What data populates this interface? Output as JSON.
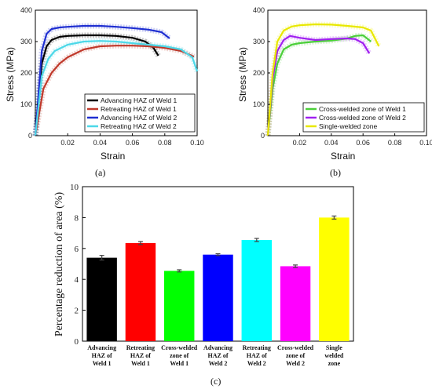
{
  "chart_data": [
    {
      "panel": "(a)",
      "type": "line",
      "xlabel": "Strain",
      "ylabel": "Stress (MPa)",
      "xlim": [
        0,
        0.1
      ],
      "ylim": [
        0,
        400
      ],
      "xticks": [
        "0.02",
        "0.04",
        "0.06",
        "0.08",
        "0.10"
      ],
      "yticks": [
        "0",
        "100",
        "200",
        "300",
        "400"
      ],
      "legend_position": "bottom-right",
      "series": [
        {
          "name": "Advancing HAZ of Weld 1",
          "color": "#000000",
          "x": [
            0,
            0.004,
            0.007,
            0.01,
            0.015,
            0.02,
            0.03,
            0.04,
            0.05,
            0.06,
            0.068,
            0.073,
            0.076
          ],
          "y": [
            0,
            230,
            285,
            305,
            315,
            318,
            320,
            320,
            318,
            312,
            300,
            280,
            255
          ]
        },
        {
          "name": "Retreating HAZ of Weld 1",
          "color": "#c0392b",
          "x": [
            0,
            0.005,
            0.01,
            0.015,
            0.02,
            0.03,
            0.04,
            0.05,
            0.06,
            0.07,
            0.08,
            0.09,
            0.098
          ],
          "y": [
            0,
            150,
            200,
            230,
            250,
            275,
            285,
            287,
            287,
            285,
            280,
            270,
            252
          ]
        },
        {
          "name": "Advancing HAZ of Weld 2",
          "color": "#1f2fd1",
          "x": [
            0,
            0.004,
            0.007,
            0.01,
            0.015,
            0.02,
            0.03,
            0.04,
            0.05,
            0.06,
            0.07,
            0.078,
            0.083
          ],
          "y": [
            0,
            270,
            325,
            340,
            345,
            347,
            350,
            350,
            347,
            343,
            338,
            330,
            310
          ]
        },
        {
          "name": "Retreating HAZ of Weld 2",
          "color": "#4dd8e8",
          "x": [
            0,
            0.004,
            0.008,
            0.012,
            0.02,
            0.03,
            0.04,
            0.05,
            0.06,
            0.07,
            0.08,
            0.09,
            0.097,
            0.1
          ],
          "y": [
            0,
            190,
            245,
            270,
            290,
            300,
            302,
            300,
            295,
            290,
            285,
            275,
            250,
            205
          ]
        }
      ]
    },
    {
      "panel": "(b)",
      "type": "line",
      "xlabel": "Strain",
      "ylabel": "Stress (MPa)",
      "xlim": [
        0,
        0.1
      ],
      "ylim": [
        0,
        400
      ],
      "xticks": [
        "0.02",
        "0.04",
        "0.06",
        "0.08",
        "0.10"
      ],
      "yticks": [
        "0",
        "100",
        "200",
        "300",
        "400"
      ],
      "legend_position": "bottom-right",
      "series": [
        {
          "name": "Cross-welded zone of Weld 1",
          "color": "#4ccf3a",
          "x": [
            0,
            0.003,
            0.006,
            0.01,
            0.015,
            0.02,
            0.03,
            0.04,
            0.05,
            0.055,
            0.06,
            0.065
          ],
          "y": [
            0,
            150,
            230,
            275,
            290,
            295,
            300,
            303,
            310,
            318,
            320,
            300
          ]
        },
        {
          "name": "Cross-welded zone of Weld 2",
          "color": "#a020f0",
          "x": [
            0,
            0.003,
            0.006,
            0.01,
            0.014,
            0.02,
            0.03,
            0.04,
            0.05,
            0.055,
            0.06,
            0.064
          ],
          "y": [
            0,
            180,
            270,
            305,
            318,
            312,
            305,
            308,
            310,
            308,
            295,
            262
          ]
        },
        {
          "name": "Single-welded zone",
          "color": "#f2f20a",
          "x": [
            0,
            0.003,
            0.006,
            0.01,
            0.015,
            0.02,
            0.03,
            0.04,
            0.05,
            0.06,
            0.065,
            0.07
          ],
          "y": [
            0,
            200,
            300,
            335,
            348,
            352,
            355,
            354,
            350,
            345,
            335,
            285
          ]
        }
      ]
    },
    {
      "panel": "(c)",
      "type": "bar",
      "ylabel": "Percentage reduction of area (%)",
      "ylim": [
        0,
        10
      ],
      "yticks": [
        "0",
        "2",
        "4",
        "6",
        "8",
        "10"
      ],
      "categories": [
        "Advancing HAZ of Weld 1",
        "Retreating HAZ of Weld 1",
        "Cross-welded zone of Weld 1",
        "Advancing HAZ of Weld 2",
        "Retreating HAZ of Weld 2",
        "Cross-welded zone of Weld 2",
        "Single welded zone"
      ],
      "category_lines": [
        [
          "Advancing",
          "HAZ of",
          "Weld 1"
        ],
        [
          "Retreating",
          "HAZ of",
          "Weld 1"
        ],
        [
          "Cross-welded",
          "zone of",
          "Weld 1"
        ],
        [
          "Advancing",
          "HAZ of",
          "Weld 2"
        ],
        [
          "Retreating",
          "HAZ of",
          "Weld 2"
        ],
        [
          "Cross-welded",
          "zone of",
          "Weld 2"
        ],
        [
          "Single",
          "welded",
          "zone"
        ]
      ],
      "values": [
        5.4,
        6.35,
        4.55,
        5.6,
        6.55,
        4.85,
        8.0
      ],
      "errors": [
        0.15,
        0.1,
        0.07,
        0.06,
        0.1,
        0.08,
        0.1
      ],
      "colors": [
        "#000000",
        "#ff0000",
        "#00ff00",
        "#0000ff",
        "#00ffff",
        "#ff00ff",
        "#ffff00"
      ]
    }
  ],
  "captions": {
    "a": "(a)",
    "b": "(b)",
    "c": "(c)"
  }
}
